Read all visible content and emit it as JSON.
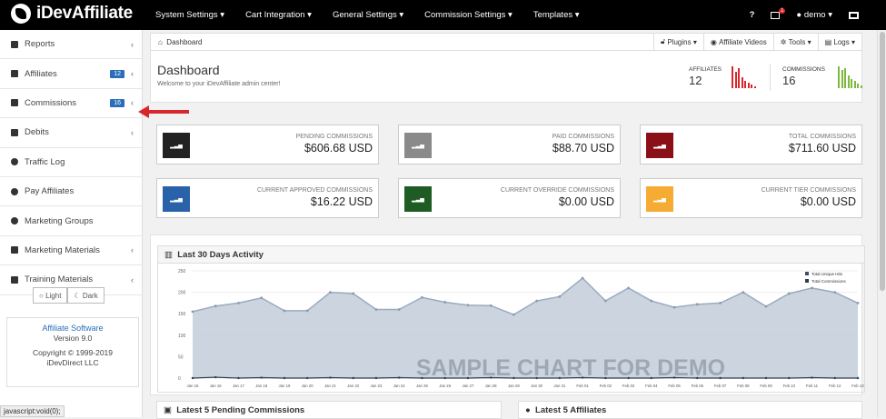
{
  "brand": {
    "name": "iDevAffiliate"
  },
  "topmenu": [
    "System Settings",
    "Cart Integration",
    "General Settings",
    "Commission Settings",
    "Templates"
  ],
  "topright": {
    "help": "?",
    "mail_count": "1",
    "user": "demo"
  },
  "sidebar": {
    "items": [
      {
        "label": "Reports",
        "badge": "",
        "chev": true,
        "icon": "plus-square-icon"
      },
      {
        "label": "Affiliates",
        "badge": "12",
        "chev": true,
        "icon": "plus-square-icon"
      },
      {
        "label": "Commissions",
        "badge": "16",
        "chev": true,
        "icon": "plus-square-icon"
      },
      {
        "label": "Debits",
        "badge": "",
        "chev": true,
        "icon": "plus-square-icon"
      },
      {
        "label": "Traffic Log",
        "badge": "",
        "chev": false,
        "icon": "arrow-circle-icon"
      },
      {
        "label": "Pay Affiliates",
        "badge": "",
        "chev": false,
        "icon": "arrow-circle-icon"
      },
      {
        "label": "Marketing Groups",
        "badge": "",
        "chev": false,
        "icon": "arrow-circle-icon"
      },
      {
        "label": "Marketing Materials",
        "badge": "",
        "chev": true,
        "icon": "plus-square-icon"
      },
      {
        "label": "Training Materials",
        "badge": "",
        "chev": true,
        "icon": "plus-square-icon"
      }
    ]
  },
  "theme": {
    "light": "Light",
    "dark": "Dark"
  },
  "info": {
    "title": "Affiliate Software",
    "version": "Version 9.0",
    "copyright": "Copyright © 1999-2019",
    "company": "iDevDirect LLC"
  },
  "statusbar": "javascript:void(0);",
  "breadcrumb": "Dashboard",
  "tools": [
    "Plugins",
    "Affiliate Videos",
    "Tools",
    "Logs"
  ],
  "header": {
    "title": "Dashboard",
    "subtitle": "Welcome to your iDevAffiliate admin center!",
    "affiliates_label": "AFFILIATES",
    "affiliates_value": "12",
    "commissions_label": "COMMISSIONS",
    "commissions_value": "16"
  },
  "colors": {
    "red": "#d9262c",
    "green": "#7cba3e",
    "blue": "#2a6ebb"
  },
  "cards": [
    {
      "label": "PENDING COMMISSIONS",
      "value": "$606.68 USD",
      "color": "#222222"
    },
    {
      "label": "PAID COMMISSIONS",
      "value": "$88.70 USD",
      "color": "#8a8a8a"
    },
    {
      "label": "TOTAL COMMISSIONS",
      "value": "$711.60 USD",
      "color": "#8b0f16"
    },
    {
      "label": "CURRENT APPROVED COMMISSIONS",
      "value": "$16.22 USD",
      "color": "#2a62aa"
    },
    {
      "label": "CURRENT OVERRIDE COMMISSIONS",
      "value": "$0.00 USD",
      "color": "#1e5c23"
    },
    {
      "label": "CURRENT TIER COMMISSIONS",
      "value": "$0.00 USD",
      "color": "#f6ab33"
    }
  ],
  "activity": {
    "title": "Last 30 Days Activity",
    "watermark": "SAMPLE CHART FOR DEMO"
  },
  "chart_data": {
    "type": "area",
    "x": [
      "Jan 15",
      "Jan 16",
      "Jan 17",
      "Jan 18",
      "Jan 19",
      "Jan 20",
      "Jan 21",
      "Jan 22",
      "Jan 23",
      "Jan 24",
      "Jan 25",
      "Jan 26",
      "Jan 27",
      "Jan 28",
      "Jan 29",
      "Jan 30",
      "Jan 31",
      "Feb 01",
      "Feb 02",
      "Feb 03",
      "Feb 04",
      "Feb 05",
      "Feb 06",
      "Feb 07",
      "Feb 08",
      "Feb 09",
      "Feb 10",
      "Feb 11",
      "Feb 12",
      "Feb 13"
    ],
    "series": [
      {
        "name": "Total Unique Hits",
        "values": [
          155,
          168,
          175,
          187,
          157,
          157,
          200,
          197,
          160,
          160,
          188,
          177,
          170,
          169,
          148,
          180,
          190,
          233,
          180,
          210,
          180,
          165,
          172,
          175,
          200,
          167,
          197,
          210,
          200,
          175
        ]
      },
      {
        "name": "Total Commissions",
        "values": [
          0,
          2,
          0,
          1,
          0,
          0,
          1,
          0,
          0,
          1,
          0,
          0,
          0,
          1,
          0,
          0,
          0,
          1,
          0,
          0,
          0,
          1,
          0,
          0,
          0,
          0,
          0,
          1,
          0,
          0
        ]
      }
    ],
    "yticks": [
      0,
      50,
      100,
      150,
      200,
      250
    ],
    "ylim": [
      0,
      250
    ],
    "legend": "top-right"
  },
  "bottom": {
    "pending": "Latest 5 Pending Commissions",
    "affiliates": "Latest 5 Affiliates"
  }
}
